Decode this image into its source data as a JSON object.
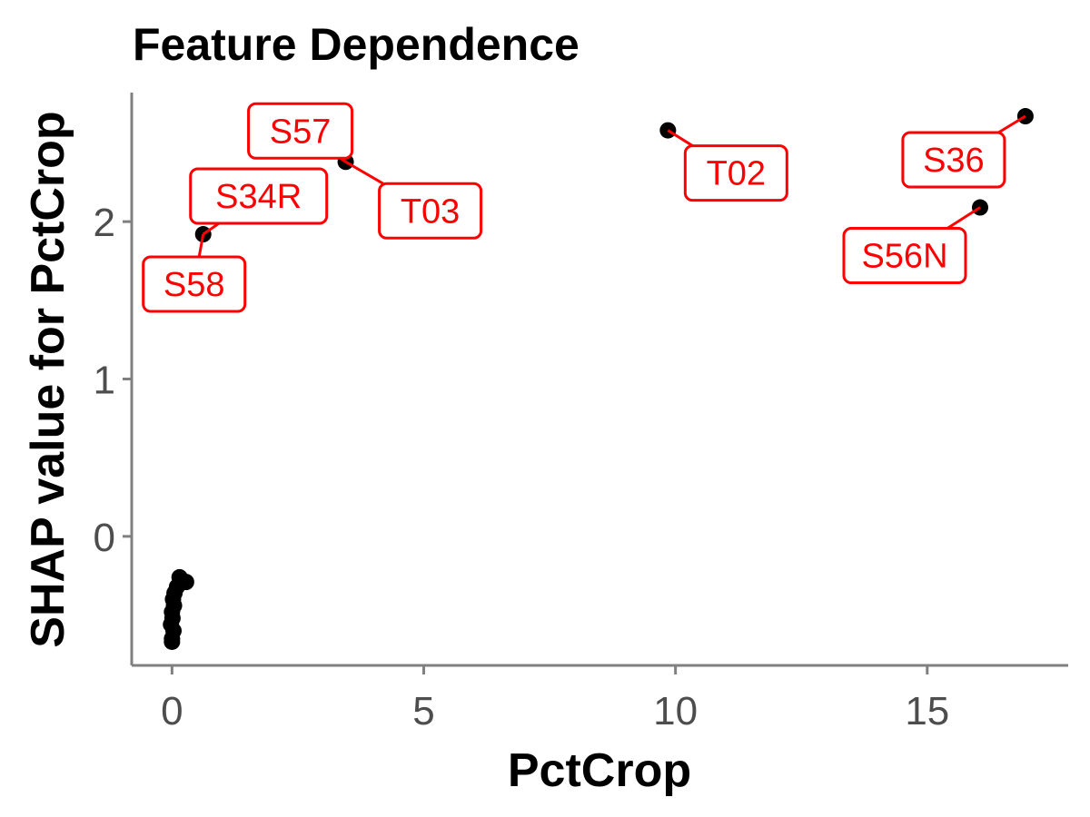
{
  "chart_data": {
    "type": "scatter",
    "title": "Feature Dependence",
    "xlabel": "PctCrop",
    "ylabel": "SHAP value for PctCrop",
    "xlim": [
      -0.8,
      17.8
    ],
    "ylim": [
      -0.82,
      2.82
    ],
    "x_ticks": [
      0,
      5,
      10,
      15
    ],
    "y_ticks": [
      0,
      1,
      2
    ],
    "grid": false,
    "legend": "none",
    "colors": {
      "points": "#000000",
      "labels": "#ff0000",
      "axis": "#808080",
      "ticks": "#4d4d4d"
    },
    "points": [
      {
        "x": 0.62,
        "y": 1.92
      },
      {
        "x": 3.45,
        "y": 2.38
      },
      {
        "x": 9.85,
        "y": 2.58
      },
      {
        "x": 16.05,
        "y": 2.09
      },
      {
        "x": 16.95,
        "y": 2.67
      },
      {
        "x": 0.15,
        "y": -0.26
      },
      {
        "x": 0.28,
        "y": -0.29
      },
      {
        "x": 0.1,
        "y": -0.32
      },
      {
        "x": 0.05,
        "y": -0.36
      },
      {
        "x": 0.02,
        "y": -0.4
      },
      {
        "x": 0.04,
        "y": -0.44
      },
      {
        "x": 0.0,
        "y": -0.48
      },
      {
        "x": 0.01,
        "y": -0.52
      },
      {
        "x": -0.02,
        "y": -0.56
      },
      {
        "x": 0.03,
        "y": -0.6
      },
      {
        "x": 0.0,
        "y": -0.65
      },
      {
        "x": 0.0,
        "y": -0.67
      }
    ],
    "labels": [
      {
        "text": "S58",
        "x": 0.62,
        "y": 1.92
      },
      {
        "text": "S34R",
        "x": 0.62,
        "y": 1.92
      },
      {
        "text": "S57",
        "x": 3.45,
        "y": 2.38
      },
      {
        "text": "T03",
        "x": 3.45,
        "y": 2.38
      },
      {
        "text": "T02",
        "x": 9.85,
        "y": 2.58
      },
      {
        "text": "S36",
        "x": 16.95,
        "y": 2.67
      },
      {
        "text": "S56N",
        "x": 16.05,
        "y": 2.09
      }
    ]
  }
}
